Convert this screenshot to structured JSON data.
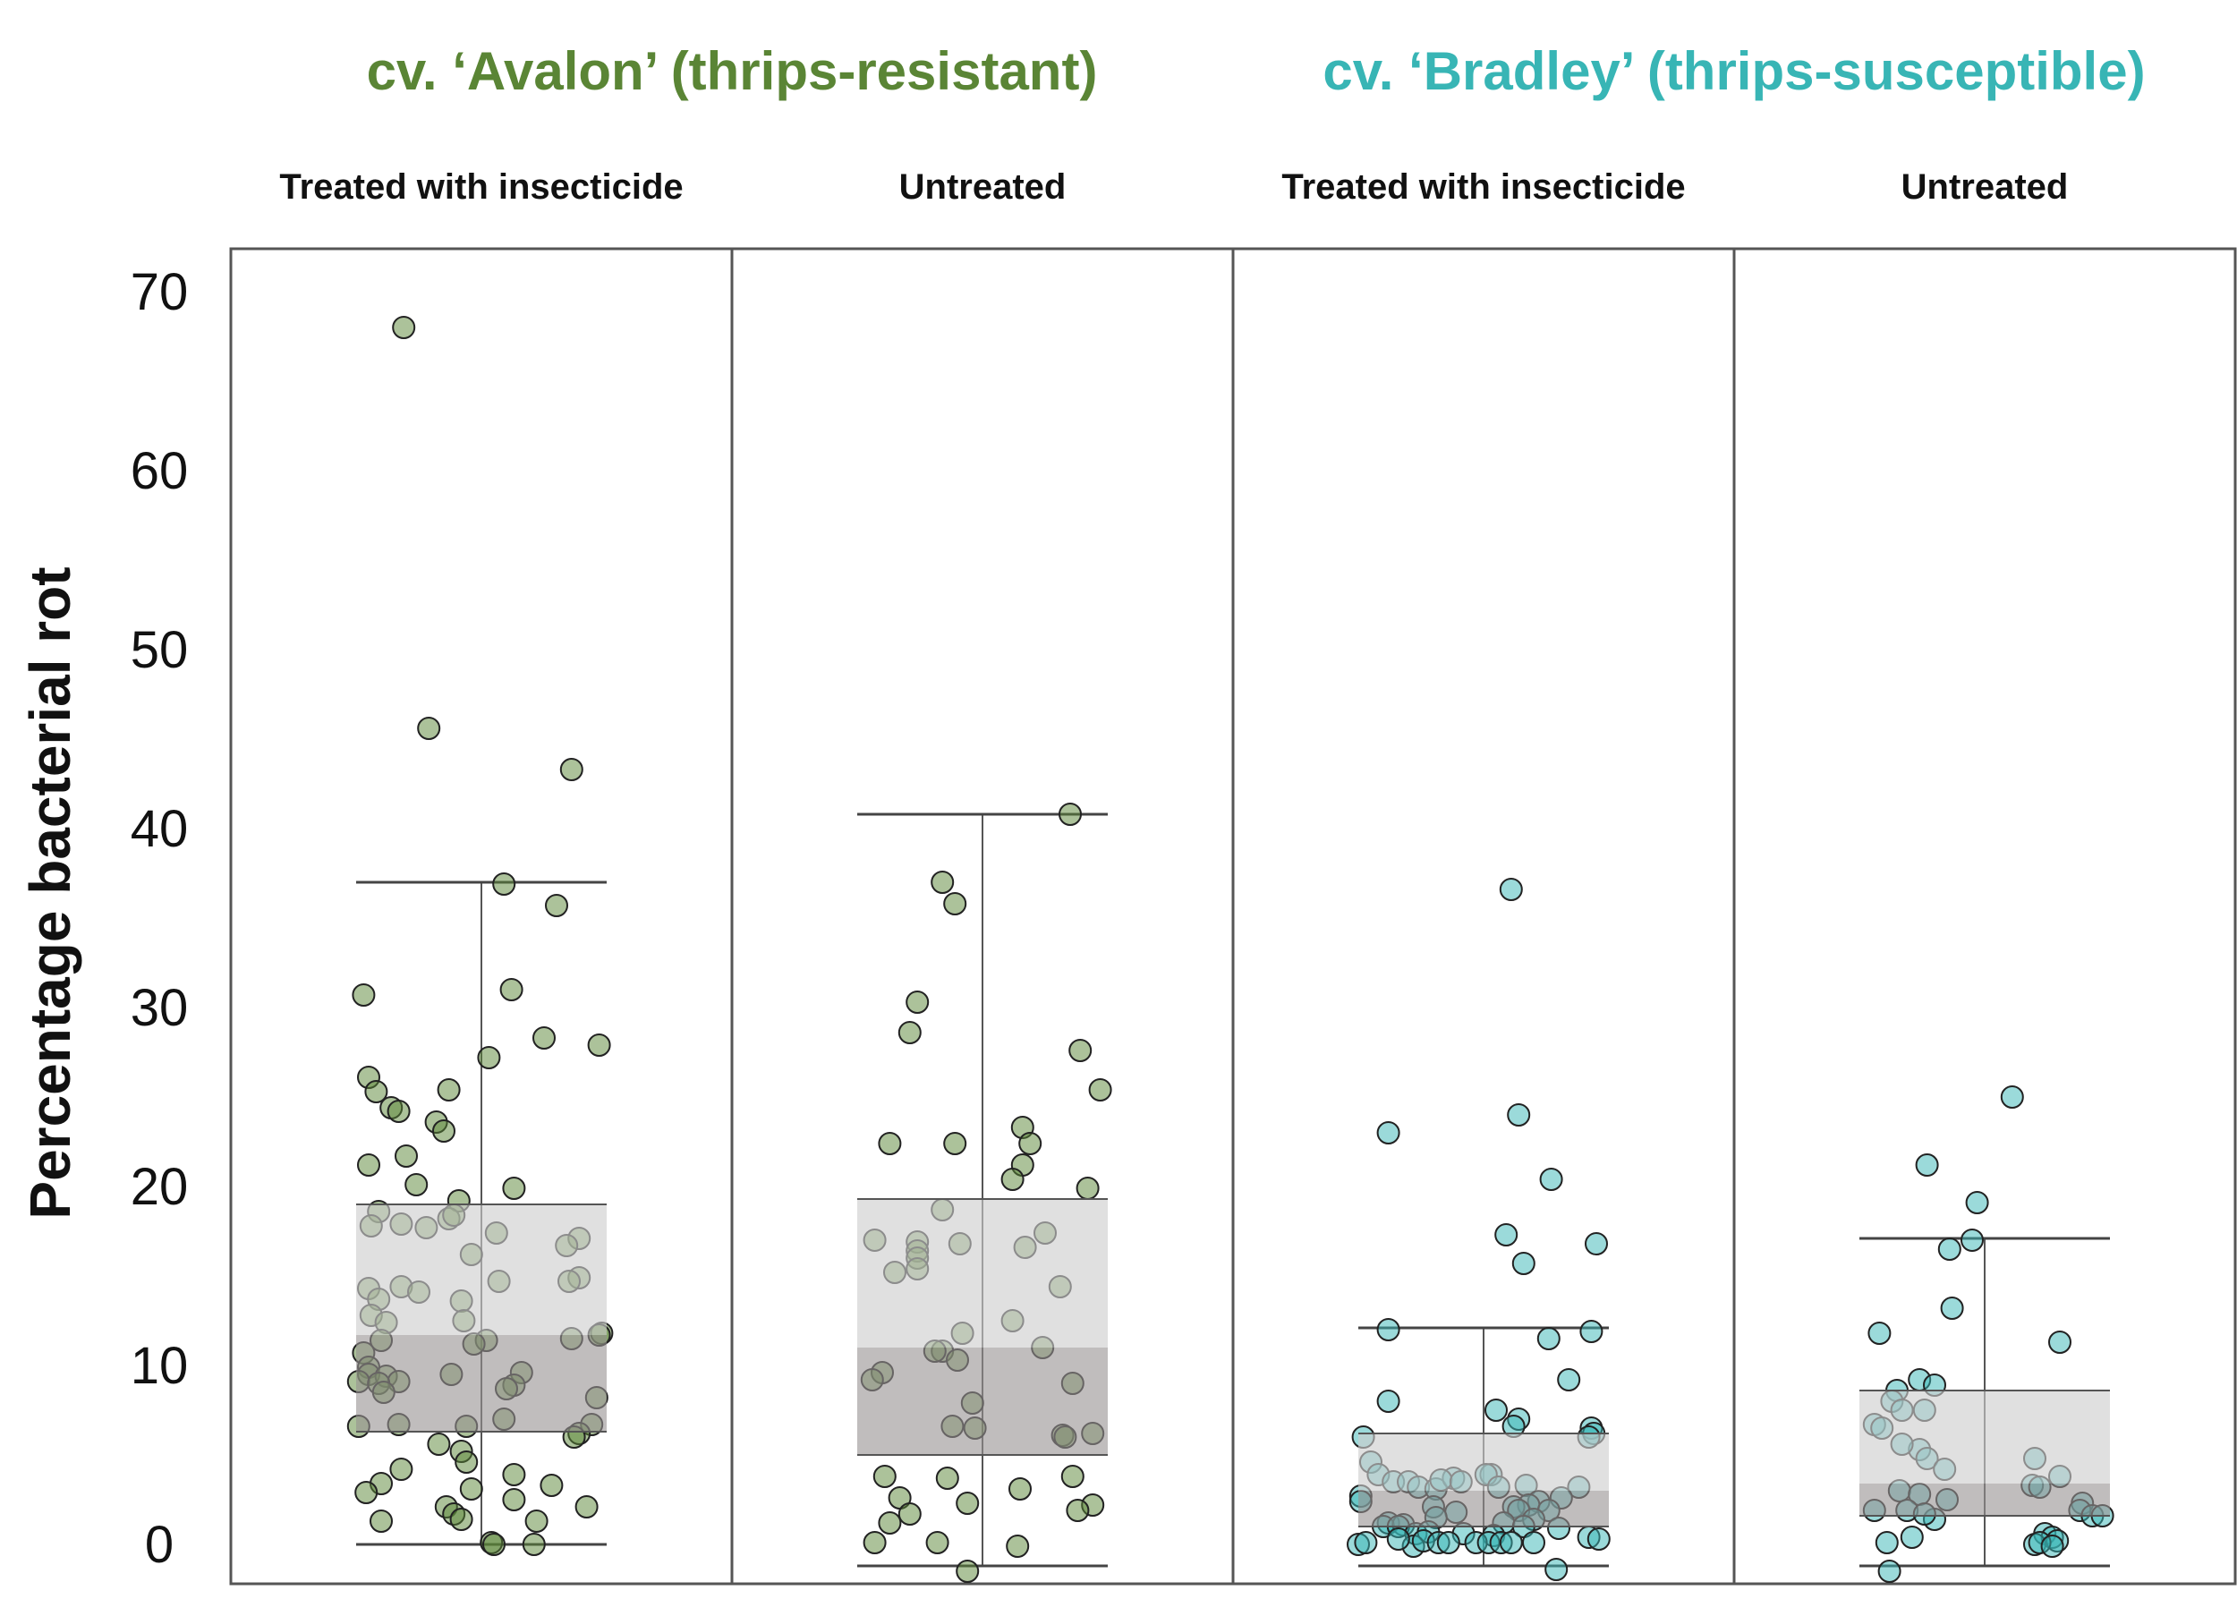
{
  "chart_data": {
    "type": "box-jitter",
    "ylabel": "Percentage bacterial rot",
    "ylim": [
      -2,
      72
    ],
    "yticks": [
      "0",
      "10",
      "20",
      "30",
      "40",
      "50",
      "60",
      "70"
    ],
    "groups": [
      {
        "label": "cv. ‘Avalon’ (thrips-resistant)",
        "color": "#5a8535"
      },
      {
        "label": "cv. ‘Bradley’ (thrips-susceptible)",
        "color": "#38b5b5"
      }
    ],
    "panels": [
      {
        "label": "Treated with insecticide",
        "group": 0,
        "box": {
          "whisker_low": 0,
          "q1": 6.3,
          "median": 11.7,
          "q3": 19,
          "whisker_high": 37
        },
        "points": [
          [
            -0.31,
            68
          ],
          [
            -0.21,
            45.6
          ],
          [
            0.36,
            43.3
          ],
          [
            0.09,
            36.9
          ],
          [
            0.3,
            35.7
          ],
          [
            -0.47,
            30.7
          ],
          [
            0.12,
            31
          ],
          [
            0.25,
            28.3
          ],
          [
            0.47,
            27.9
          ],
          [
            0.03,
            27.2
          ],
          [
            -0.13,
            25.4
          ],
          [
            -0.45,
            26.1
          ],
          [
            -0.42,
            25.3
          ],
          [
            -0.36,
            24.4
          ],
          [
            -0.33,
            24.2
          ],
          [
            -0.18,
            23.6
          ],
          [
            -0.15,
            23.1
          ],
          [
            -0.45,
            21.2
          ],
          [
            -0.3,
            21.7
          ],
          [
            -0.26,
            20.1
          ],
          [
            0.13,
            19.9
          ],
          [
            -0.09,
            19.2
          ],
          [
            -0.41,
            18.6
          ],
          [
            -0.13,
            18.2
          ],
          [
            -0.11,
            18.4
          ],
          [
            -0.44,
            17.8
          ],
          [
            -0.22,
            17.7
          ],
          [
            -0.32,
            17.9
          ],
          [
            0.06,
            17.4
          ],
          [
            0.39,
            17.1
          ],
          [
            0.34,
            16.7
          ],
          [
            -0.04,
            16.2
          ],
          [
            -0.45,
            14.3
          ],
          [
            0.07,
            14.7
          ],
          [
            0.39,
            14.9
          ],
          [
            0.35,
            14.7
          ],
          [
            -0.32,
            14.4
          ],
          [
            -0.25,
            14.1
          ],
          [
            -0.41,
            13.7
          ],
          [
            -0.08,
            13.6
          ],
          [
            -0.44,
            12.8
          ],
          [
            -0.38,
            12.4
          ],
          [
            -0.07,
            12.5
          ],
          [
            0.48,
            11.8
          ],
          [
            0.47,
            11.7
          ],
          [
            0.36,
            11.5
          ],
          [
            -0.4,
            11.4
          ],
          [
            0.02,
            11.4
          ],
          [
            -0.03,
            11.2
          ],
          [
            -0.47,
            10.7
          ],
          [
            -0.45,
            9.9
          ],
          [
            0.16,
            9.6
          ],
          [
            -0.45,
            9.5
          ],
          [
            -0.38,
            9.4
          ],
          [
            -0.33,
            9.1
          ],
          [
            -0.12,
            9.5
          ],
          [
            -0.49,
            9.1
          ],
          [
            -0.41,
            9
          ],
          [
            0.13,
            8.9
          ],
          [
            0.1,
            8.7
          ],
          [
            -0.39,
            8.5
          ],
          [
            0.46,
            8.2
          ],
          [
            0.09,
            7
          ],
          [
            -0.49,
            6.6
          ],
          [
            -0.33,
            6.7
          ],
          [
            -0.06,
            6.6
          ],
          [
            0.44,
            6.7
          ],
          [
            0.39,
            6.2
          ],
          [
            0.37,
            6
          ],
          [
            -0.17,
            5.6
          ],
          [
            -0.08,
            5.2
          ],
          [
            -0.06,
            4.6
          ],
          [
            -0.32,
            4.2
          ],
          [
            0.13,
            3.9
          ],
          [
            -0.4,
            3.4
          ],
          [
            0.28,
            3.3
          ],
          [
            -0.46,
            2.9
          ],
          [
            -0.04,
            3.1
          ],
          [
            0.13,
            2.5
          ],
          [
            -0.14,
            2.1
          ],
          [
            0.42,
            2.1
          ],
          [
            -0.11,
            1.7
          ],
          [
            -0.08,
            1.4
          ],
          [
            0.22,
            1.3
          ],
          [
            -0.4,
            1.3
          ],
          [
            0.04,
            0.1
          ],
          [
            0.05,
            0
          ],
          [
            0.21,
            0
          ]
        ]
      },
      {
        "label": "Untreated",
        "group": 0,
        "box": {
          "whisker_low": -1.2,
          "q1": 5,
          "median": 11,
          "q3": 19.3,
          "whisker_high": 40.8
        },
        "points": [
          [
            0.35,
            40.8
          ],
          [
            -0.16,
            37
          ],
          [
            -0.11,
            35.8
          ],
          [
            -0.26,
            30.3
          ],
          [
            -0.29,
            28.6
          ],
          [
            0.39,
            27.6
          ],
          [
            0.47,
            25.4
          ],
          [
            0.16,
            23.3
          ],
          [
            -0.37,
            22.4
          ],
          [
            -0.11,
            22.4
          ],
          [
            0.19,
            22.4
          ],
          [
            0.16,
            21.2
          ],
          [
            0.12,
            20.4
          ],
          [
            0.42,
            19.9
          ],
          [
            -0.16,
            18.7
          ],
          [
            0.25,
            17.4
          ],
          [
            -0.43,
            17
          ],
          [
            -0.26,
            16.9
          ],
          [
            -0.26,
            16.4
          ],
          [
            -0.26,
            16
          ],
          [
            -0.26,
            15.4
          ],
          [
            -0.35,
            15.2
          ],
          [
            0.17,
            16.6
          ],
          [
            -0.09,
            16.8
          ],
          [
            0.31,
            14.4
          ],
          [
            0.12,
            12.5
          ],
          [
            -0.08,
            11.8
          ],
          [
            0.24,
            11
          ],
          [
            -0.16,
            10.8
          ],
          [
            -0.19,
            10.8
          ],
          [
            -0.1,
            10.3
          ],
          [
            -0.4,
            9.6
          ],
          [
            -0.44,
            9.2
          ],
          [
            0.36,
            9
          ],
          [
            -0.04,
            7.9
          ],
          [
            -0.12,
            6.6
          ],
          [
            -0.03,
            6.5
          ],
          [
            0.32,
            6.1
          ],
          [
            0.33,
            6
          ],
          [
            0.44,
            6.2
          ],
          [
            -0.39,
            3.8
          ],
          [
            -0.14,
            3.7
          ],
          [
            0.36,
            3.8
          ],
          [
            0.15,
            3.1
          ],
          [
            -0.33,
            2.6
          ],
          [
            -0.06,
            2.3
          ],
          [
            0.44,
            2.2
          ],
          [
            0.38,
            1.9
          ],
          [
            -0.29,
            1.7
          ],
          [
            -0.37,
            1.2
          ],
          [
            -0.43,
            0.1
          ],
          [
            -0.18,
            0.1
          ],
          [
            0.14,
            -0.1
          ],
          [
            -0.06,
            -1.5
          ]
        ]
      },
      {
        "label": "Treated with insecticide",
        "group": 1,
        "box": {
          "whisker_low": -1.2,
          "q1": 1,
          "median": 3,
          "q3": 6.2,
          "whisker_high": 12.1
        },
        "points": [
          [
            0.11,
            36.6
          ],
          [
            0.14,
            24
          ],
          [
            -0.38,
            23
          ],
          [
            0.27,
            20.4
          ],
          [
            0.09,
            17.3
          ],
          [
            0.45,
            16.8
          ],
          [
            0.16,
            15.7
          ],
          [
            -0.38,
            12
          ],
          [
            0.43,
            11.9
          ],
          [
            0.26,
            11.5
          ],
          [
            0.34,
            9.2
          ],
          [
            -0.38,
            8
          ],
          [
            0.05,
            7.5
          ],
          [
            0.14,
            7
          ],
          [
            0.12,
            6.6
          ],
          [
            0.43,
            6.5
          ],
          [
            0.44,
            6.2
          ],
          [
            0.42,
            6
          ],
          [
            -0.48,
            6
          ],
          [
            -0.45,
            4.6
          ],
          [
            -0.42,
            3.9
          ],
          [
            -0.36,
            3.5
          ],
          [
            -0.3,
            3.5
          ],
          [
            0.17,
            3.3
          ],
          [
            -0.26,
            3.2
          ],
          [
            -0.19,
            3.1
          ],
          [
            0.03,
            3.9
          ],
          [
            0.01,
            3.9
          ],
          [
            -0.12,
            3.7
          ],
          [
            -0.17,
            3.6
          ],
          [
            -0.09,
            3.5
          ],
          [
            0.06,
            3.2
          ],
          [
            0.38,
            3.2
          ],
          [
            -0.49,
            2.7
          ],
          [
            -0.49,
            2.4
          ],
          [
            0.31,
            2.6
          ],
          [
            0.22,
            2.4
          ],
          [
            0.18,
            2.2
          ],
          [
            0.12,
            2.1
          ],
          [
            -0.2,
            2.1
          ],
          [
            0.14,
            1.9
          ],
          [
            0.26,
            1.9
          ],
          [
            -0.11,
            1.8
          ],
          [
            -0.19,
            1.5
          ],
          [
            0.2,
            1.4
          ],
          [
            0.08,
            1.2
          ],
          [
            0.16,
            1
          ],
          [
            0.3,
            0.9
          ],
          [
            -0.38,
            1.2
          ],
          [
            -0.4,
            1
          ],
          [
            -0.32,
            1.1
          ],
          [
            -0.34,
            1
          ],
          [
            -0.27,
            0.6
          ],
          [
            -0.22,
            0.7
          ],
          [
            -0.08,
            0.6
          ],
          [
            0.04,
            0.5
          ],
          [
            0.42,
            0.4
          ],
          [
            0.46,
            0.3
          ],
          [
            -0.5,
            0
          ],
          [
            -0.47,
            0.1
          ],
          [
            -0.28,
            -0.1
          ],
          [
            -0.24,
            0.2
          ],
          [
            -0.18,
            0.1
          ],
          [
            -0.14,
            0.1
          ],
          [
            -0.03,
            0.1
          ],
          [
            0.02,
            0.1
          ],
          [
            0.07,
            0.1
          ],
          [
            0.11,
            0.1
          ],
          [
            -0.34,
            0.3
          ],
          [
            0.2,
            0.1
          ],
          [
            0.29,
            -1.4
          ]
        ]
      },
      {
        "label": "Untreated",
        "group": 1,
        "box": {
          "whisker_low": -1.2,
          "q1": 1.6,
          "median": 3.4,
          "q3": 8.6,
          "whisker_high": 17.1
        },
        "points": [
          [
            0.11,
            25
          ],
          [
            -0.23,
            21.2
          ],
          [
            -0.03,
            19.1
          ],
          [
            -0.14,
            16.5
          ],
          [
            -0.05,
            17
          ],
          [
            -0.13,
            13.2
          ],
          [
            0.3,
            11.3
          ],
          [
            -0.42,
            11.8
          ],
          [
            -0.26,
            9.2
          ],
          [
            -0.2,
            8.9
          ],
          [
            -0.35,
            8.6
          ],
          [
            -0.37,
            8
          ],
          [
            -0.33,
            7.5
          ],
          [
            -0.24,
            7.5
          ],
          [
            -0.44,
            6.7
          ],
          [
            -0.41,
            6.5
          ],
          [
            -0.26,
            5.3
          ],
          [
            -0.33,
            5.6
          ],
          [
            -0.23,
            4.8
          ],
          [
            -0.16,
            4.2
          ],
          [
            0.2,
            4.8
          ],
          [
            0.3,
            3.8
          ],
          [
            0.19,
            3.3
          ],
          [
            0.22,
            3.2
          ],
          [
            -0.34,
            3
          ],
          [
            -0.26,
            2.8
          ],
          [
            -0.15,
            2.5
          ],
          [
            -0.44,
            1.9
          ],
          [
            -0.31,
            1.9
          ],
          [
            -0.2,
            1.4
          ],
          [
            -0.24,
            1.7
          ],
          [
            0.39,
            2.3
          ],
          [
            0.38,
            1.9
          ],
          [
            0.43,
            1.6
          ],
          [
            0.47,
            1.6
          ],
          [
            -0.29,
            0.4
          ],
          [
            0.24,
            0.6
          ],
          [
            0.27,
            0.4
          ],
          [
            0.29,
            0.2
          ],
          [
            -0.39,
            0.1
          ],
          [
            0.2,
            0
          ],
          [
            0.22,
            0.1
          ],
          [
            0.27,
            -0.1
          ],
          [
            -0.38,
            -1.5
          ]
        ]
      }
    ]
  }
}
